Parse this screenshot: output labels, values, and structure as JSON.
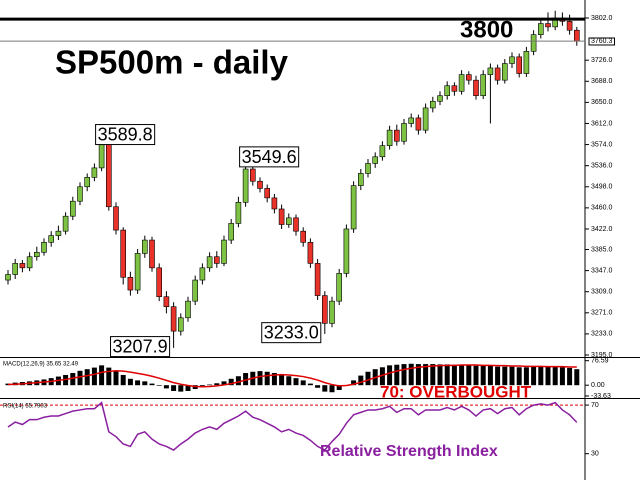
{
  "chart_data": [
    {
      "type": "candlestick",
      "title": "SP500m - daily",
      "open": [
        3330,
        3340,
        3360,
        3352,
        3372,
        3380,
        3398,
        3410,
        3418,
        3445,
        3472,
        3498,
        3515,
        3532,
        3575,
        3462,
        3420,
        3335,
        3312,
        3378,
        3402,
        3352,
        3300,
        3282,
        3238,
        3262,
        3292,
        3330,
        3352,
        3372,
        3360,
        3402,
        3432,
        3470,
        3530,
        3508,
        3495,
        3478,
        3458,
        3430,
        3442,
        3418,
        3398,
        3360,
        3302,
        3252,
        3292,
        3342,
        3422,
        3500,
        3522,
        3540,
        3552,
        3572,
        3600,
        3580,
        3612,
        3622,
        3600,
        3640,
        3652,
        3662,
        3680,
        3670,
        3700,
        3690,
        3662,
        3700,
        3712,
        3690,
        3720,
        3732,
        3702,
        3742,
        3772,
        3792,
        3786,
        3802,
        3796,
        3780
      ],
      "high": [
        3348,
        3368,
        3366,
        3380,
        3390,
        3405,
        3418,
        3428,
        3452,
        3480,
        3506,
        3522,
        3540,
        3589.8,
        3580,
        3470,
        3425,
        3345,
        3386,
        3410,
        3408,
        3360,
        3310,
        3290,
        3270,
        3300,
        3338,
        3360,
        3380,
        3382,
        3410,
        3440,
        3480,
        3549.6,
        3536,
        3515,
        3502,
        3485,
        3466,
        3450,
        3448,
        3425,
        3405,
        3368,
        3310,
        3300,
        3350,
        3430,
        3508,
        3530,
        3548,
        3560,
        3580,
        3608,
        3610,
        3620,
        3630,
        3628,
        3648,
        3660,
        3670,
        3688,
        3686,
        3708,
        3706,
        3698,
        3708,
        3720,
        3718,
        3728,
        3740,
        3738,
        3750,
        3780,
        3800,
        3812,
        3815,
        3812,
        3808,
        3786
      ],
      "low": [
        3322,
        3332,
        3344,
        3346,
        3365,
        3374,
        3390,
        3402,
        3412,
        3438,
        3465,
        3490,
        3508,
        3526,
        3455,
        3412,
        3322,
        3302,
        3305,
        3370,
        3345,
        3292,
        3270,
        3207.9,
        3230,
        3255,
        3285,
        3322,
        3345,
        3352,
        3355,
        3395,
        3425,
        3462,
        3500,
        3488,
        3470,
        3450,
        3422,
        3424,
        3410,
        3390,
        3352,
        3294,
        3233,
        3245,
        3285,
        3335,
        3415,
        3492,
        3515,
        3532,
        3545,
        3565,
        3572,
        3574,
        3605,
        3592,
        3594,
        3632,
        3645,
        3655,
        3662,
        3664,
        3682,
        3655,
        3656,
        3612,
        3682,
        3684,
        3712,
        3695,
        3696,
        3735,
        3765,
        3778,
        3780,
        3788,
        3772,
        3752
      ],
      "close": [
        3340,
        3360,
        3352,
        3372,
        3380,
        3398,
        3410,
        3418,
        3445,
        3472,
        3498,
        3515,
        3532,
        3575,
        3462,
        3420,
        3335,
        3312,
        3378,
        3402,
        3352,
        3300,
        3282,
        3238,
        3262,
        3292,
        3330,
        3352,
        3372,
        3360,
        3402,
        3432,
        3470,
        3530,
        3508,
        3495,
        3478,
        3458,
        3430,
        3442,
        3418,
        3398,
        3360,
        3302,
        3252,
        3292,
        3342,
        3422,
        3500,
        3522,
        3540,
        3552,
        3572,
        3600,
        3580,
        3612,
        3622,
        3600,
        3640,
        3652,
        3662,
        3680,
        3670,
        3700,
        3690,
        3662,
        3700,
        3712,
        3690,
        3720,
        3732,
        3702,
        3742,
        3772,
        3792,
        3786,
        3802,
        3796,
        3780,
        3760.3
      ],
      "ylim": [
        3191.4,
        3834.4
      ],
      "yticks": [
        {
          "value": 3802,
          "label": "3802.0"
        },
        {
          "value": 3726,
          "label": "3726.0"
        },
        {
          "value": 3688,
          "label": "3688.0"
        },
        {
          "value": 3650,
          "label": "3650.0"
        },
        {
          "value": 3612,
          "label": "3612.0"
        },
        {
          "value": 3574,
          "label": "3574.0"
        },
        {
          "value": 3536,
          "label": "3536.0"
        },
        {
          "value": 3498,
          "label": "3498.0"
        },
        {
          "value": 3460,
          "label": "3460.0"
        },
        {
          "value": 3422,
          "label": "3422.0"
        },
        {
          "value": 3385,
          "label": "3385.0"
        },
        {
          "value": 3347,
          "label": "3347.0"
        },
        {
          "value": 3309,
          "label": "3309.0"
        },
        {
          "value": 3271,
          "label": "3271.0"
        },
        {
          "value": 3233,
          "label": "3233.0"
        },
        {
          "value": 3195,
          "label": "3195.0"
        }
      ],
      "up_color": "#7dc242",
      "down_color": "#e8322a",
      "hline": 3800,
      "last_price": 3760.3,
      "annotations": [
        3589.8,
        3549.6,
        3207.9,
        {
          "value": 3233,
          "label": "3233.0"
        }
      ]
    },
    {
      "type": "macd",
      "label": "MACD(12,26,9) 35.65 32.49",
      "series": [
        {
          "style": "bar",
          "color": "#000000",
          "values": [
            5,
            8,
            10,
            12,
            15,
            18,
            22,
            27,
            32,
            38,
            45,
            50,
            55,
            62,
            55,
            45,
            32,
            20,
            15,
            12,
            5,
            -2,
            -10,
            -18,
            -20,
            -18,
            -12,
            -5,
            2,
            6,
            12,
            20,
            28,
            38,
            42,
            44,
            42,
            38,
            33,
            28,
            22,
            15,
            5,
            -8,
            -20,
            -22,
            -15,
            -2,
            15,
            30,
            42,
            50,
            56,
            62,
            64,
            66,
            67,
            66,
            66,
            66,
            65,
            65,
            64,
            64,
            63,
            61,
            60,
            60,
            58,
            58,
            58,
            56,
            56,
            57,
            58,
            58,
            58,
            56,
            54,
            50
          ]
        },
        {
          "style": "line",
          "color": "#e00000",
          "values": [
            2,
            3,
            4,
            6,
            8,
            10,
            12,
            15,
            18,
            22,
            26,
            30,
            34,
            40,
            43,
            45,
            44,
            41,
            37,
            33,
            28,
            22,
            15,
            8,
            3,
            -1,
            -4,
            -5,
            -4,
            -2,
            1,
            5,
            10,
            16,
            22,
            27,
            30,
            32,
            33,
            32,
            30,
            27,
            22,
            16,
            8,
            2,
            -2,
            -1,
            3,
            9,
            16,
            24,
            31,
            38,
            44,
            49,
            53,
            56,
            58,
            60,
            61,
            62,
            62,
            63,
            63,
            63,
            62,
            62,
            61,
            61,
            60,
            60,
            59,
            59,
            59,
            58,
            58,
            58,
            57,
            57
          ]
        }
      ],
      "ylim": [
        -40,
        85
      ],
      "yticks": [
        76.59,
        {
          "value": 0,
          "label": "0.00"
        },
        -33.63
      ]
    },
    {
      "type": "line",
      "label": "RSI(14) 55.7903",
      "color": "#8a1fa0",
      "values": [
        52,
        56,
        54,
        58,
        58,
        60,
        61,
        61,
        63,
        65,
        66,
        67,
        67,
        72,
        48,
        44,
        38,
        36,
        46,
        48,
        42,
        38,
        36,
        33,
        38,
        42,
        47,
        50,
        52,
        50,
        55,
        58,
        61,
        65,
        60,
        58,
        55,
        52,
        48,
        50,
        47,
        45,
        41,
        36,
        33,
        40,
        46,
        55,
        62,
        64,
        66,
        66,
        67,
        69,
        64,
        67,
        67,
        62,
        66,
        66,
        66,
        68,
        66,
        69,
        66,
        61,
        66,
        67,
        63,
        67,
        68,
        62,
        67,
        70,
        71,
        70,
        72,
        66,
        62,
        55.79
      ],
      "ylim": [
        10,
        75
      ],
      "yticks": [
        70,
        30
      ],
      "level": 70,
      "level_color": "#e00000",
      "level_label": "70: OVERBOUGHT",
      "note": "Relative Strength Index"
    }
  ]
}
